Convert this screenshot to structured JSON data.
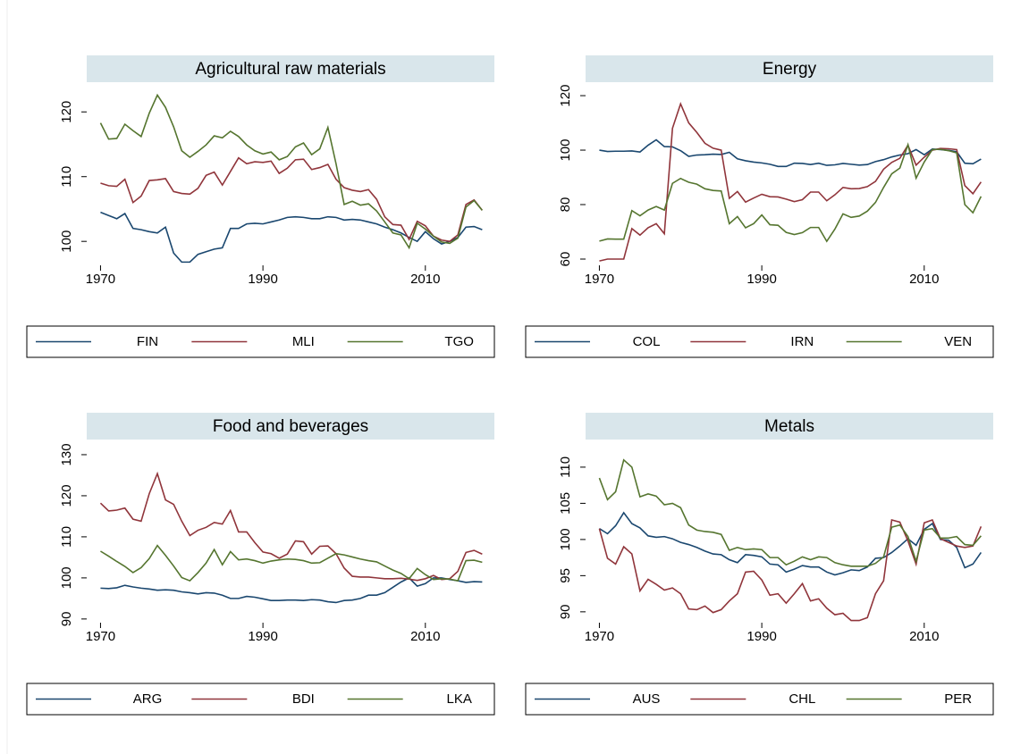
{
  "chart_data": [
    {
      "type": "line",
      "title": "Agricultural raw materials",
      "x": [
        1970,
        1971,
        1972,
        1973,
        1974,
        1975,
        1976,
        1977,
        1978,
        1979,
        1980,
        1981,
        1982,
        1983,
        1984,
        1985,
        1986,
        1987,
        1988,
        1989,
        1990,
        1991,
        1992,
        1993,
        1994,
        1995,
        1996,
        1997,
        1998,
        1999,
        2000,
        2001,
        2002,
        2003,
        2004,
        2005,
        2006,
        2007,
        2008,
        2009,
        2010,
        2011,
        2012,
        2013,
        2014,
        2015,
        2016,
        2017
      ],
      "xlim": [
        1968.3,
        2018.5
      ],
      "xticks": [
        1970,
        1990,
        2010
      ],
      "ylim": [
        96.3,
        123.9
      ],
      "yticks": [
        100,
        110,
        120
      ],
      "series": [
        {
          "name": "FIN",
          "color": "#1a476f",
          "values": [
            104.5,
            104,
            103.5,
            104.3,
            102,
            101.8,
            101.5,
            101.3,
            102.2,
            98.2,
            96.8,
            96.8,
            98,
            98.4,
            98.8,
            99,
            102,
            102,
            102.7,
            102.8,
            102.7,
            103,
            103.3,
            103.7,
            103.8,
            103.7,
            103.5,
            103.5,
            103.8,
            103.7,
            103.3,
            103.4,
            103.3,
            103,
            102.7,
            102.2,
            101.8,
            101.3,
            100.6,
            100,
            101.5,
            100.4,
            99.6,
            100,
            100.6,
            102.2,
            102.3,
            101.8
          ]
        },
        {
          "name": "MLI",
          "color": "#90353b",
          "values": [
            109,
            108.6,
            108.5,
            109.6,
            106,
            107,
            109.4,
            109.5,
            109.7,
            107.7,
            107.4,
            107.3,
            108.2,
            110.2,
            110.7,
            108.7,
            110.8,
            112.9,
            112,
            112.3,
            112.2,
            112.4,
            110.5,
            111.3,
            112.6,
            112.7,
            111.1,
            111.4,
            111.9,
            109.6,
            108.3,
            107.9,
            107.7,
            108,
            106.5,
            103.8,
            102.6,
            102.5,
            100.3,
            103.1,
            102.4,
            100.8,
            100.2,
            100,
            101,
            105.7,
            106.4,
            104.8
          ]
        },
        {
          "name": "TGO",
          "color": "#55752f",
          "values": [
            118.3,
            115.8,
            115.9,
            118.1,
            117.1,
            116.2,
            119.8,
            122.6,
            120.7,
            117.7,
            114,
            113,
            113.9,
            114.9,
            116.3,
            116,
            117,
            116.2,
            114.9,
            114,
            113.5,
            113.8,
            112.6,
            113.1,
            114.6,
            115.2,
            113.4,
            114.3,
            117.6,
            112,
            105.7,
            106.2,
            105.6,
            105.8,
            104.7,
            103,
            101.3,
            101,
            99,
            102.8,
            101.9,
            100.8,
            99.9,
            99.7,
            100.5,
            105.3,
            106.3,
            104.8
          ]
        }
      ]
    },
    {
      "type": "line",
      "title": "Energy",
      "x": [
        1970,
        1971,
        1972,
        1973,
        1974,
        1975,
        1976,
        1977,
        1978,
        1979,
        1980,
        1981,
        1982,
        1983,
        1984,
        1985,
        1986,
        1987,
        1988,
        1989,
        1990,
        1991,
        1992,
        1993,
        1994,
        1995,
        1996,
        1997,
        1998,
        1999,
        2000,
        2001,
        2002,
        2003,
        2004,
        2005,
        2006,
        2007,
        2008,
        2009,
        2010,
        2011,
        2012,
        2013,
        2014,
        2015,
        2016,
        2017
      ],
      "xlim": [
        1968.3,
        2018.5
      ],
      "xticks": [
        1970,
        1990,
        2010
      ],
      "ylim": [
        57.7,
        123.3
      ],
      "yticks": [
        60,
        80,
        100,
        120
      ],
      "series": [
        {
          "name": "COL",
          "color": "#1a476f",
          "values": [
            100,
            99.5,
            99.6,
            99.6,
            99.7,
            99.3,
            101.8,
            103.8,
            101.3,
            101.2,
            99.8,
            97.7,
            98.2,
            98.3,
            98.5,
            98.4,
            99.2,
            96.8,
            96.1,
            95.6,
            95.3,
            94.8,
            94,
            94,
            95.2,
            95.1,
            94.7,
            95.2,
            94.4,
            94.6,
            95.1,
            94.8,
            94.5,
            94.7,
            95.8,
            96.5,
            97.5,
            98.2,
            98.7,
            100.2,
            98.3,
            100.4,
            100.2,
            99.9,
            99.4,
            95.2,
            95,
            96.7
          ]
        },
        {
          "name": "IRN",
          "color": "#90353b",
          "values": [
            59.3,
            60,
            60,
            60,
            71.2,
            68.8,
            71.5,
            73,
            69.3,
            108,
            117,
            110,
            106.5,
            102.5,
            100.7,
            100,
            82.3,
            84.8,
            80.9,
            82.4,
            83.8,
            82.9,
            82.8,
            82,
            81.1,
            81.8,
            84.6,
            84.6,
            81.4,
            83.6,
            86.3,
            85.8,
            85.9,
            86.6,
            88.5,
            93,
            95.5,
            97,
            101.8,
            94.5,
            97.4,
            100,
            100.6,
            100.5,
            100.2,
            87,
            84,
            88.3
          ]
        },
        {
          "name": "VEN",
          "color": "#55752f",
          "values": [
            66.6,
            67.4,
            67.3,
            67.3,
            77.8,
            75.9,
            78,
            79.3,
            78,
            87.8,
            89.6,
            88.2,
            87.5,
            85.8,
            85.2,
            85,
            73,
            75.6,
            71.5,
            73,
            76.2,
            72.6,
            72.4,
            69.8,
            69,
            69.7,
            71.6,
            71.6,
            66.5,
            71,
            76.6,
            75.3,
            75.8,
            77.6,
            80.8,
            86.3,
            91.3,
            93.4,
            102,
            89.7,
            95.6,
            100.2,
            100.3,
            99.8,
            99,
            80,
            77,
            83
          ]
        }
      ]
    },
    {
      "type": "line",
      "title": "Food and beverages",
      "x": [
        1970,
        1971,
        1972,
        1973,
        1974,
        1975,
        1976,
        1977,
        1978,
        1979,
        1980,
        1981,
        1982,
        1983,
        1984,
        1985,
        1986,
        1987,
        1988,
        1989,
        1990,
        1991,
        1992,
        1993,
        1994,
        1995,
        1996,
        1997,
        1998,
        1999,
        2000,
        2001,
        2002,
        2003,
        2004,
        2005,
        2006,
        2007,
        2008,
        2009,
        2010,
        2011,
        2012,
        2013,
        2014,
        2015,
        2016,
        2017
      ],
      "xlim": [
        1968.3,
        2018.5
      ],
      "xticks": [
        1970,
        1990,
        2010
      ],
      "ylim": [
        89.1,
        132.6
      ],
      "yticks": [
        90,
        100,
        110,
        120,
        130
      ],
      "series": [
        {
          "name": "ARG",
          "color": "#1a476f",
          "values": [
            97.5,
            97.4,
            97.6,
            98.2,
            97.8,
            97.5,
            97.3,
            97,
            97.1,
            97,
            96.6,
            96.4,
            96.1,
            96.4,
            96.3,
            95.8,
            95,
            95,
            95.5,
            95.3,
            94.9,
            94.5,
            94.5,
            94.6,
            94.6,
            94.5,
            94.7,
            94.6,
            94.2,
            94,
            94.5,
            94.6,
            95,
            95.8,
            95.8,
            96.4,
            97.7,
            99,
            100,
            98,
            98.6,
            100,
            100,
            99.6,
            99.3,
            98.9,
            99.1,
            99
          ]
        },
        {
          "name": "BDI",
          "color": "#90353b",
          "values": [
            118.2,
            116.3,
            116.5,
            117,
            114.3,
            113.8,
            120.5,
            125.4,
            119,
            117.9,
            113.8,
            110.3,
            111.6,
            112.3,
            113.5,
            113.1,
            116.4,
            111.2,
            111.2,
            108.6,
            106.3,
            105.9,
            104.8,
            105.8,
            109,
            108.8,
            105.8,
            107.7,
            107.8,
            105.9,
            102.4,
            100.4,
            100.2,
            100.2,
            100,
            99.8,
            99.8,
            99.9,
            99.7,
            99.4,
            99.8,
            100.6,
            99.6,
            99.8,
            101.6,
            106.2,
            106.7,
            105.8
          ]
        },
        {
          "name": "LKA",
          "color": "#55752f",
          "values": [
            106.5,
            105.3,
            104,
            102.8,
            101.3,
            102.5,
            104.7,
            107.9,
            105.5,
            102.9,
            100.1,
            99.3,
            101.3,
            103.6,
            106.9,
            103.2,
            106.4,
            104.4,
            104.6,
            104.2,
            103.6,
            104.1,
            104.4,
            104.6,
            104.5,
            104.2,
            103.6,
            103.7,
            104.8,
            105.9,
            105.6,
            105.1,
            104.6,
            104.2,
            103.9,
            102.9,
            101.9,
            101.1,
            99.8,
            102.3,
            100.8,
            99.6,
            99.8,
            99.7,
            99.3,
            104.2,
            104.3,
            103.8
          ]
        }
      ]
    },
    {
      "type": "line",
      "title": "Metals",
      "x": [
        1970,
        1971,
        1972,
        1973,
        1974,
        1975,
        1976,
        1977,
        1978,
        1979,
        1980,
        1981,
        1982,
        1983,
        1984,
        1985,
        1986,
        1987,
        1988,
        1989,
        1990,
        1991,
        1992,
        1993,
        1994,
        1995,
        1996,
        1997,
        1998,
        1999,
        2000,
        2001,
        2002,
        2003,
        2004,
        2005,
        2006,
        2007,
        2008,
        2009,
        2010,
        2011,
        2012,
        2013,
        2014,
        2015,
        2016,
        2017
      ],
      "xlim": [
        1968.3,
        2018.5
      ],
      "xticks": [
        1970,
        1990,
        2010
      ],
      "ylim": [
        88.5,
        113.2
      ],
      "yticks": [
        90,
        95,
        100,
        105,
        110
      ],
      "series": [
        {
          "name": "AUS",
          "color": "#1a476f",
          "values": [
            101.5,
            100.8,
            101.9,
            103.7,
            102.2,
            101.6,
            100.5,
            100.3,
            100.4,
            100.1,
            99.6,
            99.3,
            98.9,
            98.4,
            98,
            97.9,
            97.2,
            96.8,
            97.9,
            97.8,
            97.6,
            96.6,
            96.5,
            95.5,
            95.9,
            96.4,
            96.2,
            96.2,
            95.5,
            95.1,
            95.4,
            95.8,
            95.7,
            96.2,
            97.4,
            97.5,
            98.2,
            99.1,
            100.1,
            99.2,
            101.4,
            102.2,
            100,
            99.9,
            98.9,
            96.1,
            96.6,
            98.2
          ]
        },
        {
          "name": "CHL",
          "color": "#90353b",
          "values": [
            101.5,
            97.4,
            96.6,
            99,
            98,
            92.9,
            94.5,
            93.8,
            93,
            93.3,
            92.5,
            90.4,
            90.3,
            90.8,
            89.9,
            90.3,
            91.5,
            92.5,
            95.5,
            95.6,
            94.4,
            92.3,
            92.5,
            91.2,
            92.5,
            93.9,
            91.5,
            91.8,
            90.5,
            89.6,
            89.8,
            88.8,
            88.8,
            89.2,
            92.5,
            94.3,
            102.7,
            102.4,
            99.8,
            96.6,
            102.3,
            102.7,
            100.1,
            99.6,
            99.1,
            98.9,
            99.1,
            101.8
          ]
        },
        {
          "name": "PER",
          "color": "#55752f",
          "values": [
            108.5,
            105.5,
            106.6,
            111,
            110,
            105.9,
            106.3,
            106,
            104.8,
            105,
            104.4,
            102,
            101.3,
            101.1,
            101,
            100.7,
            98.5,
            98.9,
            98.6,
            98.7,
            98.6,
            97.5,
            97.5,
            96.5,
            97,
            97.6,
            97.2,
            97.6,
            97.5,
            96.8,
            96.5,
            96.3,
            96.3,
            96.3,
            96.7,
            97.6,
            101.7,
            102,
            100.4,
            97,
            101.3,
            101.5,
            100.2,
            100.2,
            100.4,
            99.3,
            99.2,
            100.5
          ]
        }
      ]
    }
  ]
}
